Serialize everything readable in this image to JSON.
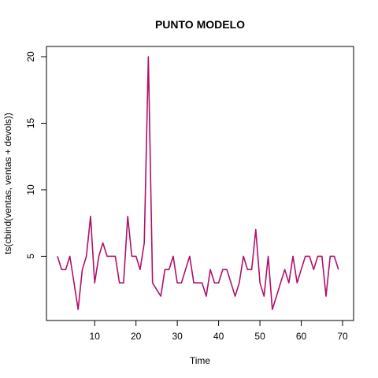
{
  "chart_data": {
    "type": "line",
    "title": "PUNTO MODELO",
    "xlabel": "Time",
    "ylabel": "ts(cbind(ventas, ventas + devols))",
    "xlim": [
      1,
      70
    ],
    "ylim": [
      1,
      20
    ],
    "x_ticks": [
      "10",
      "20",
      "30",
      "40",
      "50",
      "60",
      "70"
    ],
    "y_ticks": [
      "5",
      "10",
      "15",
      "20"
    ],
    "grid": false,
    "series": [
      {
        "color": "#b0106a",
        "x": [
          1,
          2,
          3,
          4,
          5,
          6,
          7,
          8,
          9,
          10,
          11,
          12,
          13,
          14,
          15,
          16,
          17,
          18,
          19,
          20,
          21,
          22,
          23,
          24,
          25,
          26,
          27,
          28,
          29,
          30,
          31,
          32,
          33,
          34,
          35,
          36,
          37,
          38,
          39,
          40,
          41,
          42,
          43,
          44,
          45,
          46,
          47,
          48,
          49,
          50,
          51,
          52,
          53,
          54,
          55,
          56,
          57,
          58,
          59,
          60,
          61,
          62,
          63,
          64,
          65,
          66,
          67,
          68,
          69
        ],
        "values": [
          5,
          4,
          4,
          5,
          3,
          1,
          4,
          5,
          8,
          3,
          5,
          6,
          5,
          5,
          5,
          3,
          3,
          8,
          5,
          5,
          4,
          6,
          20,
          3,
          2.5,
          2,
          4,
          4,
          5,
          3,
          3,
          4,
          5,
          3,
          3,
          3,
          2,
          4,
          3,
          3,
          4,
          4,
          3,
          2,
          3,
          5,
          4,
          4,
          7,
          3,
          2,
          5,
          1,
          2,
          3,
          4,
          3,
          5,
          3,
          4,
          5,
          5,
          4,
          5,
          5,
          2,
          5,
          5,
          4
        ]
      }
    ]
  }
}
